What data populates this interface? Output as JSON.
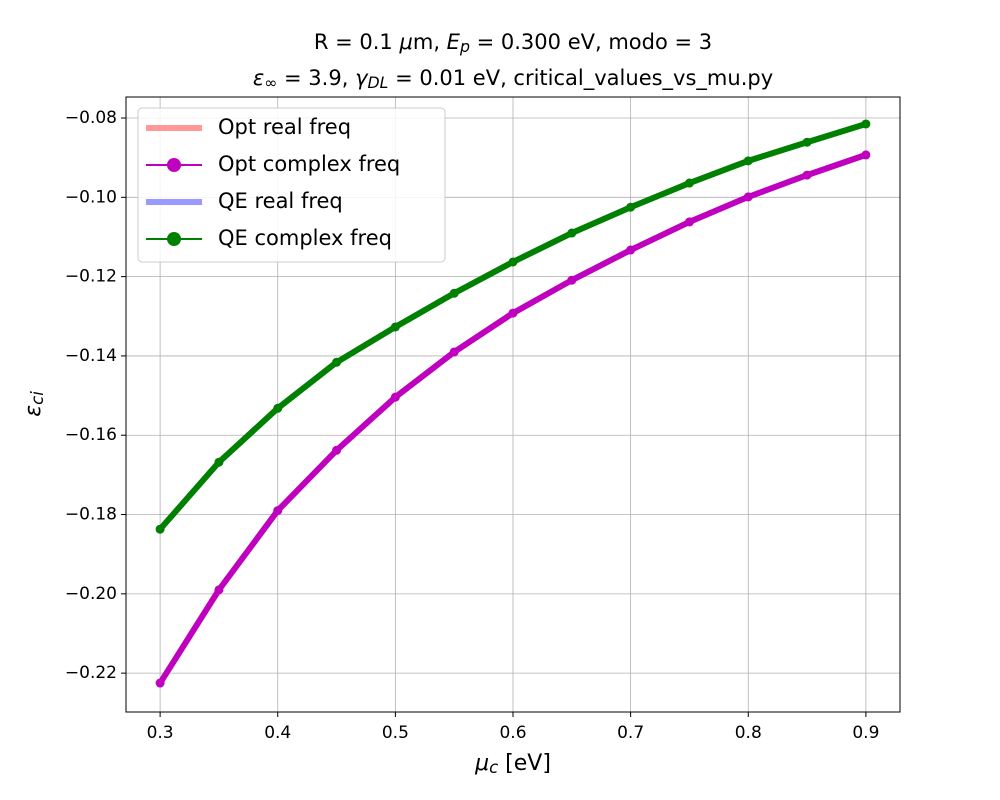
{
  "chart_data": {
    "type": "line",
    "title": [
      [
        {
          "text": "R = 0.1 "
        },
        {
          "text": "μ",
          "style": "italic"
        },
        {
          "text": "m, "
        },
        {
          "text": "E",
          "style": "italic"
        },
        {
          "text": "p",
          "style": "sub"
        },
        {
          "text": " = 0.300 eV, modo = 3"
        }
      ],
      [
        {
          "text": "ε",
          "style": "italic"
        },
        {
          "text": "∞",
          "style": "sub"
        },
        {
          "text": " = 3.9, "
        },
        {
          "text": "γ",
          "style": "italic"
        },
        {
          "text": "DL",
          "style": "sub"
        },
        {
          "text": " = 0.01 eV, critical_values_vs_mu.py"
        }
      ]
    ],
    "xlabel": [
      {
        "text": "μ",
        "style": "italic"
      },
      {
        "text": "c",
        "style": "sub"
      },
      {
        "text": " [eV]"
      }
    ],
    "ylabel": [
      {
        "text": "ε",
        "style": "italic"
      },
      {
        "text": "ci",
        "style": "sub"
      }
    ],
    "x": [
      0.3,
      0.35,
      0.4,
      0.45,
      0.5,
      0.55,
      0.6,
      0.65,
      0.7,
      0.75,
      0.8,
      0.85,
      0.9
    ],
    "series": [
      {
        "name": "Opt real freq",
        "color": "#ff9999",
        "marker": false,
        "values": [
          null,
          null,
          null,
          null,
          null,
          null,
          null,
          null,
          null,
          null,
          null,
          null,
          null
        ]
      },
      {
        "name": "Opt complex freq",
        "color": "#bf00bf",
        "marker": true,
        "values": [
          -0.2225,
          -0.199,
          -0.179,
          -0.1638,
          -0.1504,
          -0.139,
          -0.1292,
          -0.1209,
          -0.1133,
          -0.1062,
          -0.0999,
          -0.0944,
          -0.0893
        ]
      },
      {
        "name": "QE real freq",
        "color": "#9999ff",
        "marker": false,
        "values": [
          null,
          null,
          null,
          null,
          null,
          null,
          null,
          null,
          null,
          null,
          null,
          null,
          null
        ]
      },
      {
        "name": "QE complex freq",
        "color": "#008000",
        "marker": true,
        "values": [
          -0.1837,
          -0.1668,
          -0.1532,
          -0.1416,
          -0.1327,
          -0.1242,
          -0.1163,
          -0.109,
          -0.1025,
          -0.0964,
          -0.0908,
          -0.0861,
          -0.0815
        ]
      }
    ],
    "xlim": [
      0.271,
      0.929
    ],
    "ylim": [
      -0.2298,
      -0.0747
    ],
    "xticks": [
      0.3,
      0.4,
      0.5,
      0.6,
      0.7,
      0.8,
      0.9
    ],
    "yticks": [
      {
        "value": -0.22,
        "label": "−0.22"
      },
      {
        "value": -0.2,
        "label": "−0.20"
      },
      {
        "value": -0.18,
        "label": "−0.18"
      },
      {
        "value": -0.16,
        "label": "−0.16"
      },
      {
        "value": -0.14,
        "label": "−0.14"
      },
      {
        "value": -0.12,
        "label": "−0.12"
      },
      {
        "value": -0.1,
        "label": "−0.10"
      },
      {
        "value": -0.08,
        "label": "−0.08"
      }
    ],
    "grid": true,
    "legend": "upper-left"
  }
}
